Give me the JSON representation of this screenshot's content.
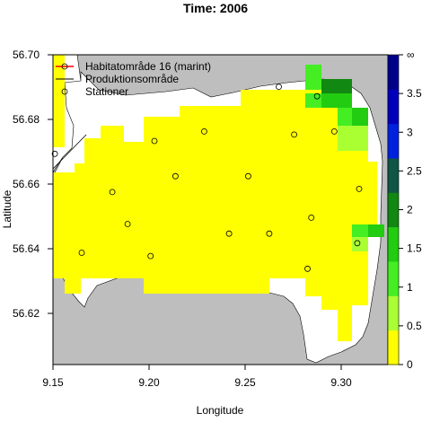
{
  "title": "Time: 2006",
  "x_axis": {
    "label": "Longitude",
    "ticks": [
      "9.15",
      "9.20",
      "9.25",
      "9.30"
    ]
  },
  "y_axis": {
    "label": "Latitude",
    "ticks": [
      "56.62",
      "56.64",
      "56.66",
      "56.68",
      "56.70"
    ]
  },
  "legend": {
    "items": [
      {
        "label": "Habitatområde 16 (marint)",
        "color": "#ff0000"
      },
      {
        "label": "Produktionsområde",
        "color": "#000000"
      },
      {
        "label": "Stationer",
        "color": "#000000"
      }
    ]
  },
  "colorbar": {
    "ticks": [
      "0",
      "0.5",
      "1",
      "1.5",
      "2",
      "2.5",
      "3",
      "3.5",
      "∞"
    ],
    "colors": [
      "#ffff00",
      "#aaff33",
      "#44ee22",
      "#22cc11",
      "#118811",
      "#115544",
      "#0022dd",
      "#0000bb",
      "#00008b"
    ]
  },
  "chart_data": {
    "type": "heatmap",
    "title": "Time: 2006",
    "xlabel": "Longitude",
    "ylabel": "Latitude",
    "xlim": [
      9.15,
      9.325
    ],
    "ylim": [
      56.603,
      56.7
    ],
    "colors": {
      "land": "#bebebe",
      "water": "#ffffff"
    },
    "stations": [
      [
        9.268,
        56.69
      ],
      [
        9.288,
        56.687
      ],
      [
        9.297,
        56.676
      ],
      [
        9.276,
        56.675
      ],
      [
        9.229,
        56.676
      ],
      [
        9.203,
        56.673
      ],
      [
        9.151,
        56.669
      ],
      [
        9.252,
        56.662
      ],
      [
        9.214,
        56.662
      ],
      [
        9.181,
        56.657
      ],
      [
        9.31,
        56.658
      ],
      [
        9.285,
        56.649
      ],
      [
        9.189,
        56.647
      ],
      [
        9.242,
        56.644
      ],
      [
        9.263,
        56.644
      ],
      [
        9.309,
        56.641
      ],
      [
        9.165,
        56.638
      ],
      [
        9.201,
        56.637
      ],
      [
        9.283,
        56.633
      ]
    ]
  }
}
